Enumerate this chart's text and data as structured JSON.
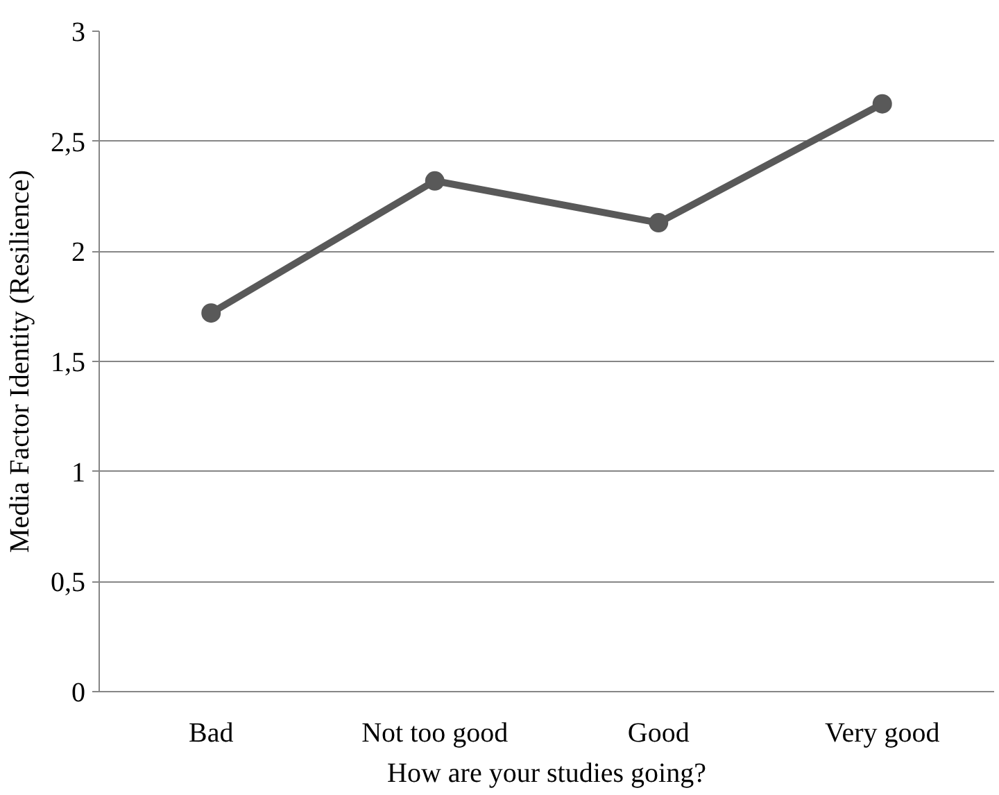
{
  "chart_data": {
    "type": "line",
    "xlabel": "How are your studies going?",
    "ylabel": "Media Factor Identity (Resilience)",
    "categories": [
      "Bad",
      "Not too good",
      "Good",
      "Very good"
    ],
    "series": [
      {
        "color": "#595959",
        "values": [
          1.72,
          2.32,
          2.13,
          2.67
        ]
      }
    ],
    "ylim": [
      0,
      3
    ],
    "yticks": [
      0,
      {
        "value": 0.5,
        "label": "0,5"
      },
      1,
      {
        "value": 1.5,
        "label": "1,5"
      },
      2,
      {
        "value": 2.5,
        "label": "2,5"
      },
      3
    ],
    "grid": "y",
    "marker": "circle",
    "line_style": "solid"
  }
}
